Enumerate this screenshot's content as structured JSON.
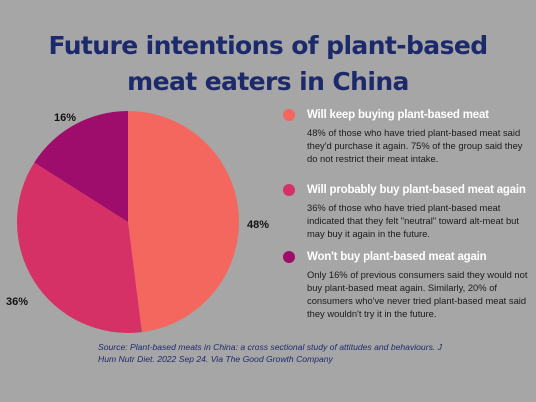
{
  "title_line1": "Future intentions of plant-based",
  "title_line2": "meat eaters in China",
  "colors": {
    "keep": "#f4675e",
    "probably": "#d63166",
    "wont": "#9e0c6c",
    "title": "#1c2a6b"
  },
  "chart_data": {
    "type": "pie",
    "slices": [
      {
        "label": "Will keep buying plant-based meat",
        "value": 48,
        "value_label": "48%",
        "color": "#f4675e"
      },
      {
        "label": "Will probably buy plant-based meat again",
        "value": 36,
        "value_label": "36%",
        "color": "#d63166"
      },
      {
        "label": "Won't buy plant-based meat again",
        "value": 16,
        "value_label": "16%",
        "color": "#9e0c6c"
      }
    ]
  },
  "legend": [
    {
      "heading": "Will keep buying plant-based meat",
      "text": "48% of those who have tried plant-based meat said they'd purchase it again.  75% of the group said they do not restrict their meat intake."
    },
    {
      "heading": "Will probably buy plant-based meat again",
      "text": "36% of those who have tried plant-based meat indicated that they felt \"neutral\" toward alt-meat but may buy it again in the future."
    },
    {
      "heading": "Won't buy plant-based meat again",
      "text": "Only 16% of previous consumers said they would not buy plant-based meat again. Similarly, 20% of consumers who've never tried plant-based meat said they wouldn't try it in the future."
    }
  ],
  "source": "Source: Plant-based meats in China: a cross sectional study of attitudes  and behaviours. J Hum Nutr Diet.  2022 Sep 24.  Via The Good Growth Company"
}
